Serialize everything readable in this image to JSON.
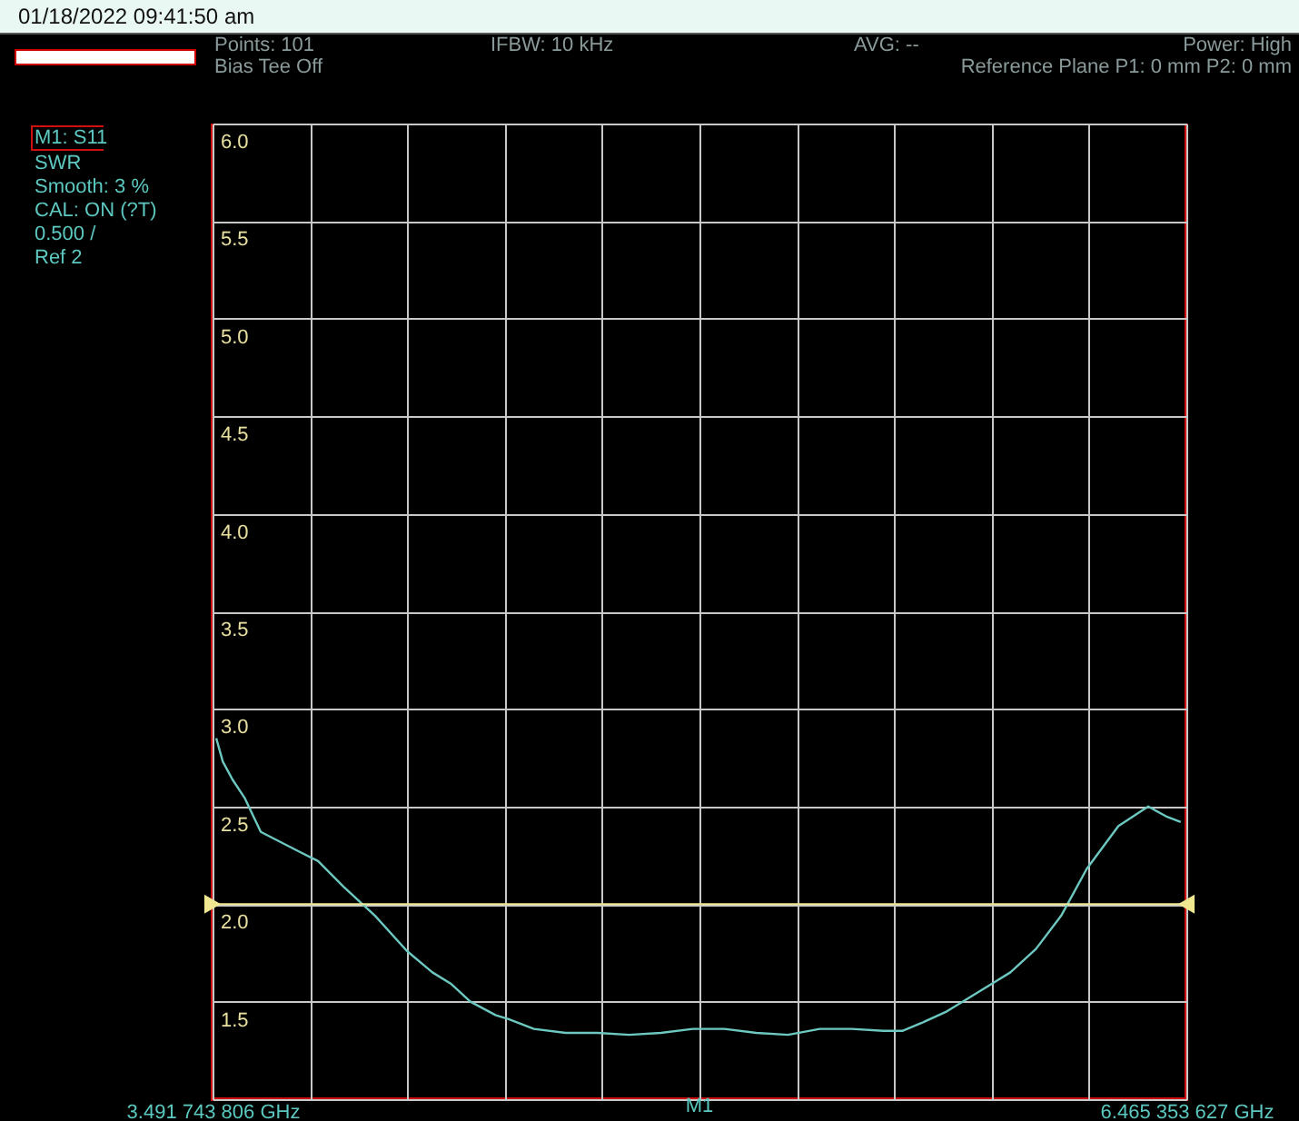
{
  "chart_data": {
    "type": "line",
    "title": "01/18/2022 09:41:50 am",
    "annotations": [
      "Points: 101",
      "IFBW: 10 kHz",
      "AVG: --",
      "Power: High",
      "Bias Tee Off",
      "Reference Plane P1: 0 mm P2: 0 mm",
      "M1: S11",
      "SWR",
      "Smooth: 3 %",
      "CAL: ON (?T)",
      "0.500 /",
      "Ref 2",
      "M1"
    ],
    "x": [
      3.503,
      3.523,
      3.552,
      3.591,
      3.639,
      3.697,
      3.755,
      3.814,
      3.891,
      3.988,
      4.085,
      4.163,
      4.221,
      4.279,
      4.357,
      4.396,
      4.473,
      4.57,
      4.667,
      4.764,
      4.861,
      4.958,
      5.055,
      5.152,
      5.249,
      5.346,
      5.443,
      5.54,
      5.598,
      5.656,
      5.734,
      5.792,
      5.87,
      5.928,
      6.006,
      6.083,
      6.161,
      6.258,
      6.349,
      6.403,
      6.448
    ],
    "series": [
      {
        "color": "#6cc8c0",
        "values": [
          2.85,
          2.73,
          2.64,
          2.54,
          2.37,
          2.32,
          2.27,
          2.22,
          2.09,
          1.94,
          1.76,
          1.65,
          1.59,
          1.5,
          1.43,
          1.41,
          1.36,
          1.34,
          1.34,
          1.33,
          1.34,
          1.36,
          1.36,
          1.34,
          1.33,
          1.36,
          1.36,
          1.35,
          1.35,
          1.39,
          1.45,
          1.51,
          1.59,
          1.65,
          1.77,
          1.94,
          2.18,
          2.4,
          2.5,
          2.45,
          2.42
        ]
      }
    ],
    "xlim": [
      3.491743806,
      6.465353627
    ],
    "xticks": [
      {
        "value": 3.491743806,
        "label": "3.491 743 806 GHz"
      },
      {
        "value": 3.7891,
        "label": null
      },
      {
        "value": 4.0865,
        "label": null
      },
      {
        "value": 4.3838,
        "label": null
      },
      {
        "value": 4.6812,
        "label": null
      },
      {
        "value": 4.9785,
        "label": null
      },
      {
        "value": 5.2759,
        "label": null
      },
      {
        "value": 5.5733,
        "label": null
      },
      {
        "value": 5.8706,
        "label": null
      },
      {
        "value": 6.168,
        "label": null
      },
      {
        "value": 6.465353627,
        "label": "6.465 353 627 GHz"
      }
    ],
    "ylim": [
      1,
      6
    ],
    "yticks": [
      {
        "value": 1,
        "label": null
      },
      {
        "value": 1.5,
        "label": "1.5"
      },
      {
        "value": 2,
        "label": "2.0"
      },
      {
        "value": 2.5,
        "label": "2.5"
      },
      {
        "value": 3,
        "label": "3.0"
      },
      {
        "value": 3.5,
        "label": "3.5"
      },
      {
        "value": 4,
        "label": "4.0"
      },
      {
        "value": 4.5,
        "label": "4.5"
      },
      {
        "value": 5,
        "label": "5.0"
      },
      {
        "value": 5.5,
        "label": "5.5"
      },
      {
        "value": 6,
        "label": "6.0"
      }
    ],
    "ref_lines": [
      {
        "axis": "y",
        "value": 2,
        "label": null,
        "color": "#f0e890"
      }
    ],
    "grid": true,
    "marker": "none",
    "line_style": "solid"
  }
}
